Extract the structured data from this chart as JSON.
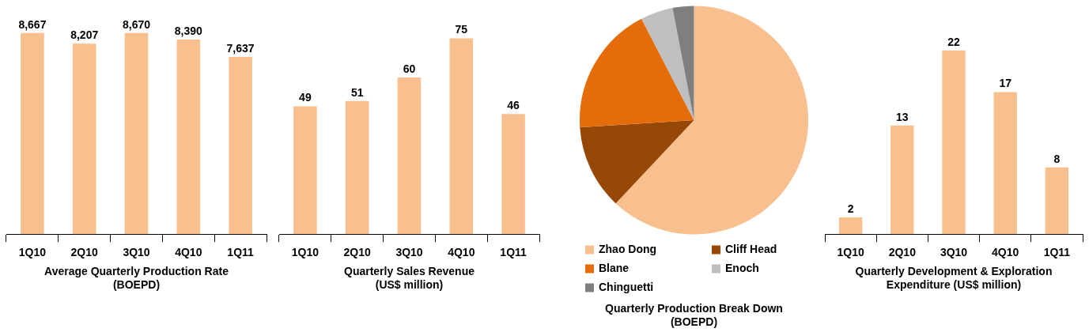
{
  "chart_data": [
    {
      "type": "bar",
      "title": "Average Quarterly Production Rate (BOEPD)",
      "categories": [
        "1Q10",
        "2Q10",
        "3Q10",
        "4Q10",
        "1Q11"
      ],
      "values": [
        8667,
        8207,
        8670,
        8390,
        7637
      ],
      "value_labels": [
        "8,667",
        "8,207",
        "8,670",
        "8,390",
        "7,637"
      ],
      "color": "#f9c08f",
      "tick_labels": "x",
      "grid": false,
      "legend": false
    },
    {
      "type": "bar",
      "title": "Quarterly Sales Revenue (US$ million)",
      "categories": [
        "1Q10",
        "2Q10",
        "3Q10",
        "4Q10",
        "1Q11"
      ],
      "values": [
        49,
        51,
        60,
        75,
        46
      ],
      "color": "#f9c08f",
      "data_labels": true,
      "tick_labels": "x",
      "grid": false,
      "legend": false
    },
    {
      "type": "pie",
      "title": "Quarterly Production Break Down (BOEPD)",
      "categories": [
        "Zhao Dong",
        "Cliff Head",
        "Blane",
        "Enoch",
        "Chinguetti"
      ],
      "values": [
        62,
        12,
        18.4,
        4.6,
        3
      ],
      "colors": [
        "#f9c08f",
        "#974706",
        "#e46c0a",
        "#bfbfbf",
        "#7f7f7f"
      ],
      "legend": "bottom"
    },
    {
      "type": "bar",
      "title": "Quarterly Development & Exploration Expenditure (US$ million)",
      "categories": [
        "1Q10",
        "2Q10",
        "3Q10",
        "4Q10",
        "1Q11"
      ],
      "values": [
        2,
        13,
        22,
        17,
        8
      ],
      "color": "#f9c08f",
      "data_labels": true,
      "tick_labels": "x",
      "grid": false,
      "legend": false
    }
  ]
}
